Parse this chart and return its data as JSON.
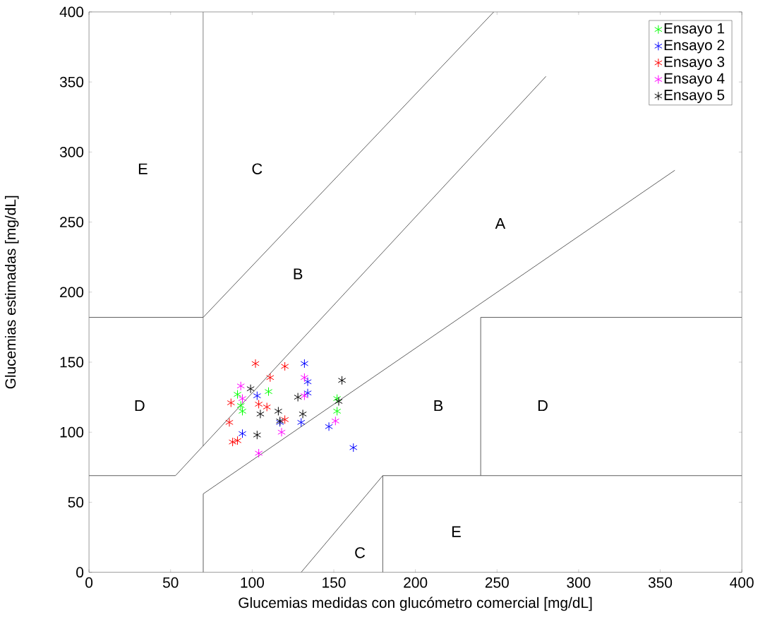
{
  "chart_data": {
    "type": "scatter",
    "xlabel": "Glucemias medidas con glucómetro comercial [mg/dL]",
    "ylabel": "Glucemias estimadas [mg/dL]",
    "xlim": [
      0,
      400
    ],
    "ylim": [
      0,
      400
    ],
    "xticks": [
      0,
      50,
      100,
      150,
      200,
      250,
      300,
      350,
      400
    ],
    "yticks": [
      0,
      50,
      100,
      150,
      200,
      250,
      300,
      350,
      400
    ],
    "legend": "top right",
    "grid": false,
    "series": [
      {
        "name": "Ensayo 1",
        "marker": "cross",
        "color": "#00ff00",
        "x": [
          110,
          91,
          93,
          94,
          152,
          152
        ],
        "values": [
          129,
          127,
          119,
          115,
          124,
          115
        ]
      },
      {
        "name": "Ensayo 2",
        "marker": "cross",
        "color": "#0000ff",
        "x": [
          132,
          134,
          134,
          103,
          130,
          147,
          94,
          162,
          117
        ],
        "values": [
          149,
          136,
          128,
          126,
          107,
          104,
          99,
          89,
          107
        ]
      },
      {
        "name": "Ensayo 3",
        "marker": "cross",
        "color": "#ff0000",
        "x": [
          102,
          120,
          111,
          87,
          104,
          109,
          86,
          120,
          88,
          91
        ],
        "values": [
          149,
          147,
          139,
          121,
          120,
          118,
          107,
          109,
          93,
          94
        ]
      },
      {
        "name": "Ensayo 4",
        "marker": "cross",
        "color": "#ff00ff",
        "x": [
          93,
          132,
          94,
          151,
          118,
          104,
          132
        ],
        "values": [
          133,
          139,
          124,
          108,
          100,
          85,
          126
        ]
      },
      {
        "name": "Ensayo 5",
        "marker": "cross",
        "color": "#000000",
        "x": [
          99,
          155,
          128,
          153,
          105,
          116,
          131,
          117,
          103
        ],
        "values": [
          131,
          137,
          125,
          122,
          113,
          115,
          113,
          108,
          98
        ]
      },
      {
        "type": "line",
        "color": "#4d4d4d",
        "x": [
          0,
          70,
          248
        ],
        "values": [
          182,
          182,
          400
        ]
      },
      {
        "type": "line",
        "color": "#4d4d4d",
        "x": [
          70,
          70
        ],
        "values": [
          400,
          90
        ]
      },
      {
        "type": "line",
        "color": "#4d4d4d",
        "x": [
          0,
          53,
          280
        ],
        "values": [
          69,
          69,
          354
        ]
      },
      {
        "type": "line",
        "color": "#4d4d4d",
        "x": [
          70,
          70,
          359
        ],
        "values": [
          0,
          56,
          287
        ]
      },
      {
        "type": "line",
        "color": "#4d4d4d",
        "x": [
          130,
          180,
          180
        ],
        "values": [
          0,
          69,
          0
        ]
      },
      {
        "type": "line",
        "color": "#4d4d4d",
        "x": [
          180,
          400
        ],
        "values": [
          69,
          69
        ]
      },
      {
        "type": "line",
        "color": "#4d4d4d",
        "x": [
          240,
          240,
          400
        ],
        "values": [
          69,
          182,
          182
        ]
      }
    ],
    "annotations": [
      "E",
      "C",
      "A",
      "B",
      "D",
      "B",
      "D",
      "E",
      "C"
    ]
  }
}
